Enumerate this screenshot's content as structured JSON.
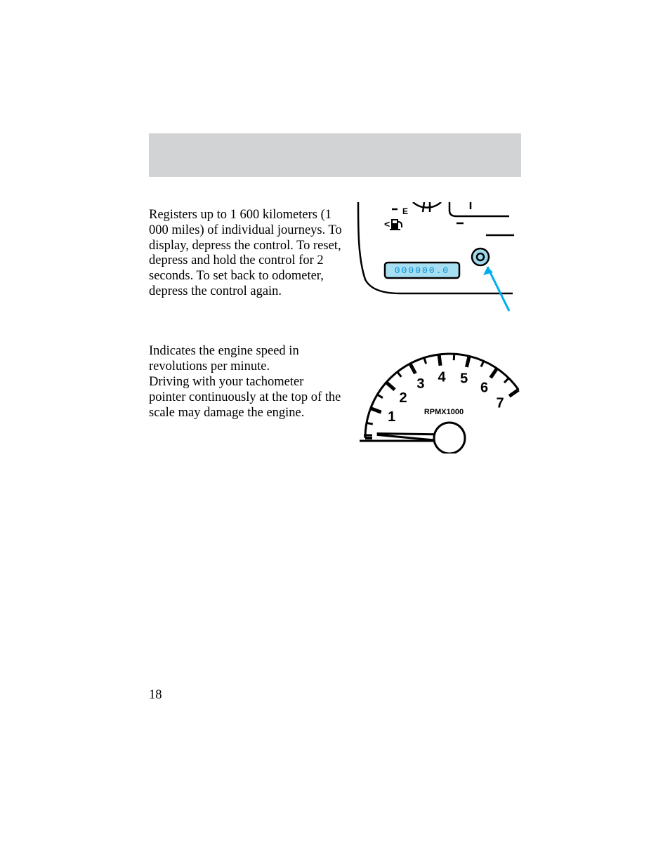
{
  "page_number": "18",
  "trip_odometer": {
    "paragraph": "Registers up to 1 600 kilometers (1 000 miles) of individual journeys. To display, depress the control. To reset, depress and hold the control for 2 seconds. To set back to odometer, depress the control again.",
    "lcd_text": "000000.0",
    "lcd_bg": "#a6dff2",
    "lcd_text_color": "#008fd5",
    "arrow_color": "#00adee",
    "button_fill": "#9fd9ed",
    "fuel_label": "E",
    "stroke": "#000000"
  },
  "tachometer": {
    "paragraph_a": "Indicates the engine speed in revolutions per minute.",
    "paragraph_b": "Driving with your tachometer pointer continuously at the top of the scale may damage the engine.",
    "numerals": [
      "1",
      "2",
      "3",
      "4",
      "5",
      "6",
      "7"
    ],
    "unit_label": "RPMX1000",
    "stroke": "#000000"
  },
  "colors": {
    "header_bg": "#d1d3d4",
    "page_bg": "#ffffff",
    "text": "#000000"
  }
}
